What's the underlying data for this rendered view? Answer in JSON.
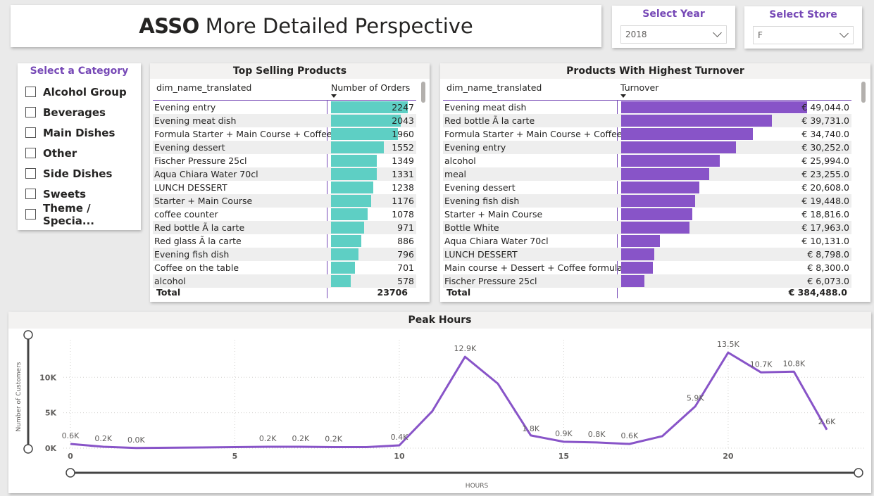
{
  "header": {
    "title_bold": "ASSO",
    "title_rest": "More Detailed Perspective"
  },
  "year_slicer": {
    "label": "Select Year",
    "value": "2018"
  },
  "store_slicer": {
    "label": "Select Store",
    "value": "F"
  },
  "category_slicer": {
    "label": "Select a Category",
    "items": [
      "Alcohol Group",
      "Beverages",
      "Main Dishes",
      "Other",
      "Side Dishes",
      "Sweets",
      "Theme / Specia..."
    ]
  },
  "top_selling": {
    "title": "Top Selling Products",
    "col_name": "dim_name_translated",
    "col_value": "Number of Orders",
    "bar_color": "#5ecfc4",
    "max": 2247,
    "rows": [
      {
        "name": "Evening entry",
        "value": 2247,
        "display": "2247"
      },
      {
        "name": "Evening meat dish",
        "value": 2043,
        "display": "2043"
      },
      {
        "name": "Formula Starter + Main Course + Coffee",
        "value": 1960,
        "display": "1960"
      },
      {
        "name": "Evening dessert",
        "value": 1552,
        "display": "1552"
      },
      {
        "name": "Fischer Pressure 25cl",
        "value": 1349,
        "display": "1349"
      },
      {
        "name": "Aqua Chiara Water 70cl",
        "value": 1331,
        "display": "1331"
      },
      {
        "name": "LUNCH DESSERT",
        "value": 1238,
        "display": "1238"
      },
      {
        "name": "Starter + Main Course",
        "value": 1176,
        "display": "1176"
      },
      {
        "name": "coffee counter",
        "value": 1078,
        "display": "1078"
      },
      {
        "name": "Red bottle Ã  la carte",
        "value": 971,
        "display": "971"
      },
      {
        "name": "Red glass Ã  la carte",
        "value": 886,
        "display": "886"
      },
      {
        "name": "Evening fish dish",
        "value": 796,
        "display": "796"
      },
      {
        "name": "Coffee on the table",
        "value": 701,
        "display": "701"
      },
      {
        "name": "alcohol",
        "value": 578,
        "display": "578"
      }
    ],
    "total_label": "Total",
    "total_value": "23706"
  },
  "turnover": {
    "title": "Products With Highest Turnover",
    "col_name": "dim_name_translated",
    "col_value": "Turnover",
    "bar_color": "#8854c8",
    "max": 49044,
    "rows": [
      {
        "name": "Evening meat dish",
        "value": 49044,
        "display": "€ 49,044.0"
      },
      {
        "name": "Red bottle Ã  la carte",
        "value": 39731,
        "display": "€ 39,731.0"
      },
      {
        "name": "Formula Starter + Main Course + Coffee",
        "value": 34740,
        "display": "€ 34,740.0"
      },
      {
        "name": "Evening entry",
        "value": 30252,
        "display": "€ 30,252.0"
      },
      {
        "name": "alcohol",
        "value": 25994,
        "display": "€ 25,994.0"
      },
      {
        "name": "meal",
        "value": 23255,
        "display": "€ 23,255.0"
      },
      {
        "name": "Evening dessert",
        "value": 20608,
        "display": "€ 20,608.0"
      },
      {
        "name": "Evening fish dish",
        "value": 19448,
        "display": "€ 19,448.0"
      },
      {
        "name": "Starter + Main Course",
        "value": 18816,
        "display": "€ 18,816.0"
      },
      {
        "name": "Bottle White",
        "value": 17963,
        "display": "€ 17,963.0"
      },
      {
        "name": "Aqua Chiara Water 70cl",
        "value": 10131,
        "display": "€ 10,131.0"
      },
      {
        "name": "LUNCH DESSERT",
        "value": 8798,
        "display": "€ 8,798.0"
      },
      {
        "name": "Main course + Dessert + Coffee formula",
        "value": 8300,
        "display": "€ 8,300.0"
      },
      {
        "name": "Fischer Pressure 25cl",
        "value": 6073,
        "display": "€ 6,073.0"
      }
    ],
    "total_label": "Total",
    "total_value": "€ 384,488.0"
  },
  "chart_data": {
    "type": "line",
    "title": "Peak Hours",
    "xlabel": "HOURS",
    "ylabel": "Number of Customers",
    "line_color": "#8854c8",
    "xlim": [
      0,
      23
    ],
    "ylim": [
      0,
      14500
    ],
    "x_ticks": [
      0,
      5,
      10,
      15,
      20
    ],
    "y_ticks": [
      {
        "v": 0,
        "label": "0K"
      },
      {
        "v": 5000,
        "label": "5K"
      },
      {
        "v": 10000,
        "label": "10K"
      }
    ],
    "grid": true,
    "points": [
      {
        "x": 0,
        "y": 600,
        "label": "0.6K"
      },
      {
        "x": 1,
        "y": 200,
        "label": "0.2K"
      },
      {
        "x": 2,
        "y": 20,
        "label": "0.0K"
      },
      {
        "x": 3,
        "y": 60,
        "label": ""
      },
      {
        "x": 4,
        "y": 100,
        "label": ""
      },
      {
        "x": 5,
        "y": 150,
        "label": ""
      },
      {
        "x": 6,
        "y": 200,
        "label": "0.2K"
      },
      {
        "x": 7,
        "y": 200,
        "label": "0.2K"
      },
      {
        "x": 8,
        "y": 150,
        "label": "0.2K"
      },
      {
        "x": 9,
        "y": 150,
        "label": ""
      },
      {
        "x": 10,
        "y": 400,
        "label": "0.4K"
      },
      {
        "x": 11,
        "y": 5200,
        "label": ""
      },
      {
        "x": 12,
        "y": 12900,
        "label": "12.9K"
      },
      {
        "x": 13,
        "y": 9100,
        "label": ""
      },
      {
        "x": 14,
        "y": 1800,
        "label": "1.8K"
      },
      {
        "x": 15,
        "y": 900,
        "label": "0.9K"
      },
      {
        "x": 16,
        "y": 800,
        "label": "0.8K"
      },
      {
        "x": 17,
        "y": 600,
        "label": "0.6K"
      },
      {
        "x": 18,
        "y": 1700,
        "label": ""
      },
      {
        "x": 19,
        "y": 5900,
        "label": "5.9K"
      },
      {
        "x": 20,
        "y": 13500,
        "label": "13.5K"
      },
      {
        "x": 21,
        "y": 10700,
        "label": "10.7K"
      },
      {
        "x": 22,
        "y": 10800,
        "label": "10.8K"
      },
      {
        "x": 23,
        "y": 2600,
        "label": "2.6K"
      }
    ]
  }
}
